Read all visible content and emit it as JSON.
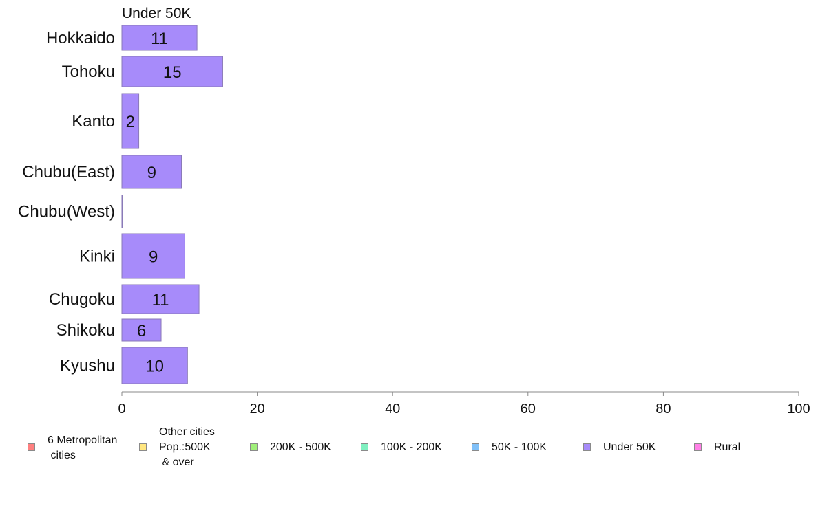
{
  "chart_data": {
    "type": "bar",
    "orientation": "horizontal",
    "title": "Under 50K",
    "categories": [
      "Hokkaido",
      "Tohoku",
      "Kanto",
      "Chubu(East)",
      "Chubu(West)",
      "Kinki",
      "Chugoku",
      "Shikoku",
      "Kyushu"
    ],
    "values": [
      11,
      15,
      2,
      9,
      0,
      9,
      11,
      6,
      10
    ],
    "data_labels": [
      "11",
      "15",
      "2",
      "9",
      "",
      "9",
      "11",
      "6",
      "10"
    ],
    "bar_widths": [
      11.1,
      14.9,
      2.5,
      8.8,
      0.1,
      9.3,
      11.4,
      5.8,
      9.7
    ],
    "xlim": [
      0,
      100
    ],
    "xticks": [
      0,
      20,
      40,
      60,
      80,
      100
    ],
    "bar_color": "#a78bfa",
    "grid": false,
    "legend_position": "bottom"
  },
  "legend": {
    "items": [
      {
        "label": "6 Metropolitan\n cities",
        "color": "#ff8080"
      },
      {
        "label": "Other cities\nPop.:500K\n & over",
        "color": "#ffe680"
      },
      {
        "label": "200K - 500K",
        "color": "#a0f07a"
      },
      {
        "label": "100K - 200K",
        "color": "#7ff0c0"
      },
      {
        "label": "50K - 100K",
        "color": "#80c0f8"
      },
      {
        "label": "Under 50K",
        "color": "#a78bfa"
      },
      {
        "label": "Rural",
        "color": "#ff80e6"
      }
    ]
  }
}
